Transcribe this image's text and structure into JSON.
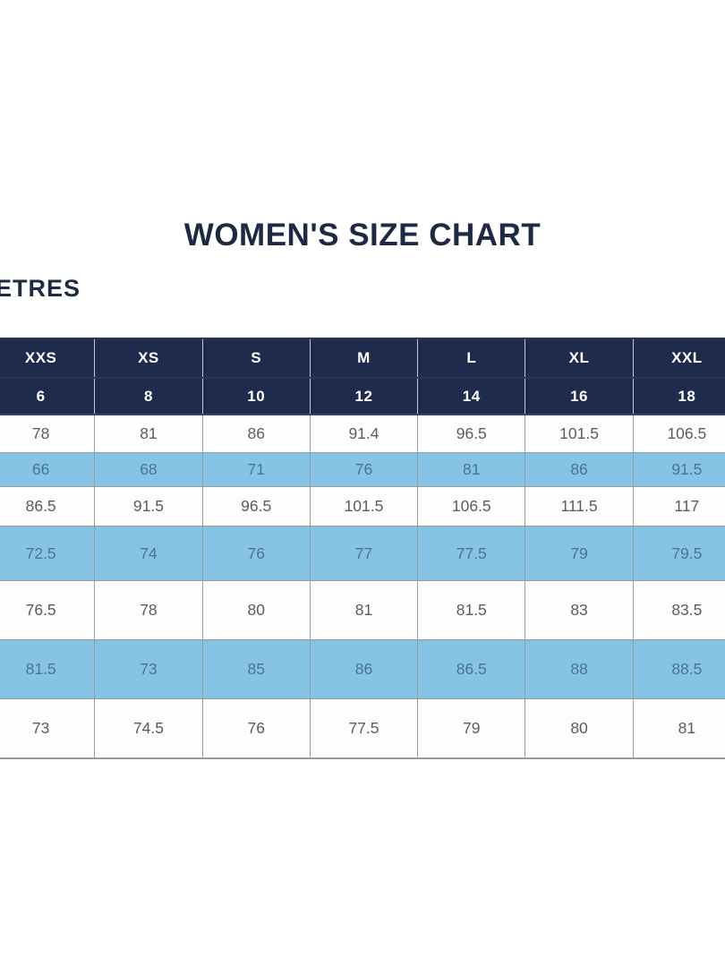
{
  "title": "WOMEN'S SIZE CHART",
  "units_label": "ETRES",
  "colors": {
    "navy_header": "#1f2b4c",
    "title_navy": "#1e2a45",
    "highlight_blue": "#85c4e4",
    "highlight_text": "#4b7394",
    "body_text": "#595b5d",
    "grid_border": "#9b9b9b"
  },
  "table": {
    "header_sizes": [
      "XXS",
      "XS",
      "S",
      "M",
      "L",
      "XL",
      "XXL"
    ],
    "header_numbers": [
      "6",
      "8",
      "10",
      "12",
      "14",
      "16",
      "18"
    ],
    "rows": [
      {
        "highlight": false,
        "values": [
          "78",
          "81",
          "86",
          "91.4",
          "96.5",
          "101.5",
          "106.5"
        ]
      },
      {
        "highlight": true,
        "values": [
          "66",
          "68",
          "71",
          "76",
          "81",
          "86",
          "91.5"
        ]
      },
      {
        "highlight": false,
        "values": [
          "86.5",
          "91.5",
          "96.5",
          "101.5",
          "106.5",
          "111.5",
          "117"
        ]
      },
      {
        "highlight": true,
        "values": [
          "72.5",
          "74",
          "76",
          "77",
          "77.5",
          "79",
          "79.5"
        ]
      },
      {
        "highlight": false,
        "values": [
          "76.5",
          "78",
          "80",
          "81",
          "81.5",
          "83",
          "83.5"
        ]
      },
      {
        "highlight": true,
        "values": [
          "81.5",
          "73",
          "85",
          "86",
          "86.5",
          "88",
          "88.5"
        ]
      },
      {
        "highlight": false,
        "values": [
          "73",
          "74.5",
          "76",
          "77.5",
          "79",
          "80",
          "81"
        ]
      }
    ]
  },
  "chart_data": {
    "type": "table",
    "title": "WOMEN'S SIZE CHART",
    "units_label_visible": "ETRES",
    "size_labels": [
      "XXS",
      "XS",
      "S",
      "M",
      "L",
      "XL",
      "XXL"
    ],
    "numeric_sizes": [
      6,
      8,
      10,
      12,
      14,
      16,
      18
    ],
    "measurement_rows": [
      [
        78,
        81,
        86,
        91.4,
        96.5,
        101.5,
        106.5
      ],
      [
        66,
        68,
        71,
        76,
        81,
        86,
        91.5
      ],
      [
        86.5,
        91.5,
        96.5,
        101.5,
        106.5,
        111.5,
        117
      ],
      [
        72.5,
        74,
        76,
        77,
        77.5,
        79,
        79.5
      ],
      [
        76.5,
        78,
        80,
        81,
        81.5,
        83,
        83.5
      ],
      [
        81.5,
        73,
        85,
        86,
        86.5,
        88,
        88.5
      ],
      [
        73,
        74.5,
        76,
        77.5,
        79,
        80,
        81
      ]
    ],
    "highlighted_row_indexes": [
      1,
      3,
      5
    ],
    "layout": "header rows navy with white text; body rows alternate white and sky-blue; left edge of chart (row labels / CENTIMETRES word) cropped out of frame"
  }
}
